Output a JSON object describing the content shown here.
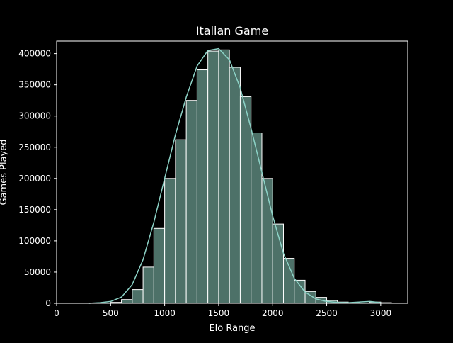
{
  "chart_data": {
    "type": "bar",
    "title": "Italian Game",
    "xlabel": "Elo Range",
    "ylabel": "Games Played",
    "xlim": [
      0,
      3250
    ],
    "ylim": [
      0,
      420000
    ],
    "xticks": [
      0,
      500,
      1000,
      1500,
      2000,
      2500,
      3000
    ],
    "yticks": [
      0,
      50000,
      100000,
      150000,
      200000,
      250000,
      300000,
      350000,
      400000
    ],
    "bin_edges": [
      100,
      200,
      300,
      400,
      500,
      600,
      700,
      800,
      900,
      1000,
      1100,
      1200,
      1300,
      1400,
      1500,
      1600,
      1700,
      1800,
      1900,
      2000,
      2100,
      2200,
      2300,
      2400,
      2500,
      2600,
      2700,
      2800,
      2900,
      3000,
      3100
    ],
    "values": [
      0,
      0,
      0,
      500,
      1500,
      6000,
      22000,
      58000,
      120000,
      200000,
      262000,
      325000,
      374000,
      404000,
      406000,
      378000,
      331000,
      273000,
      200000,
      127000,
      72000,
      37000,
      19000,
      9500,
      4500,
      2000,
      1000,
      500,
      2000,
      1000
    ],
    "kde": {
      "x": [
        300,
        400,
        500,
        600,
        700,
        800,
        900,
        1000,
        1100,
        1200,
        1300,
        1400,
        1500,
        1600,
        1700,
        1800,
        1900,
        2000,
        2100,
        2200,
        2300,
        2400,
        2500,
        2600,
        2700,
        2800,
        2900,
        3000
      ],
      "y": [
        0,
        1000,
        3000,
        10000,
        30000,
        70000,
        130000,
        200000,
        270000,
        330000,
        380000,
        405000,
        408000,
        390000,
        345000,
        280000,
        210000,
        140000,
        80000,
        40000,
        18000,
        7000,
        3000,
        1500,
        1000,
        2000,
        3000,
        1000
      ]
    },
    "colors": {
      "bar_fill": "#4d7168",
      "bar_edge": "#ffffff",
      "kde_line": "#8dd3c7",
      "background": "#000000",
      "axes": "#ffffff"
    },
    "grid": false
  }
}
